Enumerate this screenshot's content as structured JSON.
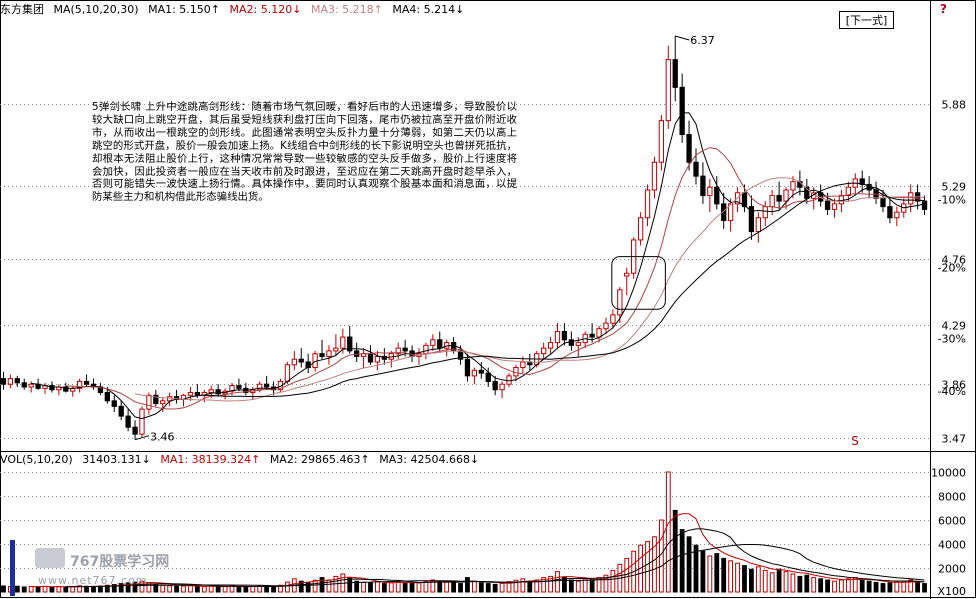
{
  "header": {
    "stock_name": "东方集团",
    "ma_label": "MA(5,10,20,30)",
    "ma1": "MA1: 5.150↑",
    "ma2": "MA2: 5.120↓",
    "ma3": "MA3: 5.218↑",
    "ma4": "MA4: 5.214↓"
  },
  "vol_header": {
    "label": "VOL(5,10,20)",
    "value": "31403.131↓",
    "ma1": "MA1: 38139.324↑",
    "ma2": "MA2: 29865.463↑",
    "ma3": "MA3: 42504.668↓"
  },
  "next_button": "[下一式]",
  "help_icon": "?",
  "annotation": "5弹剑长啸 上升中途跳高剑形线：随着市场气氛回暖，看好后市的人迅速增多，导致股价以较大缺口向上跳空开盘，其后虽受短线获利盘打压向下回落，尾市仍被拉高至开盘价附近收市，从而收出一根跳空的剑形线。此图通常表明空头反扑力量十分薄弱，如第二天仍以高上跳空的形式开盘，股价一般会加速上扬。K线组合中剑形线的长下影说明空头也曾拼死抵抗，却根本无法阻止股价上行，这种情况常常导致一些较敏感的空头反手做多，股价上行速度将会加快，因此投资者一般应在当天收市前及时跟进，至迟应在第二天跳高开盘时趁早杀入，否则可能错失一波快速上扬行情。具体操作中，要同时认真观察个股基本面和消息面，以提防某些主力和机构借此形态骗线出货。",
  "watermark": {
    "title": "767股票学习网",
    "url": "www.net767.com"
  },
  "colors": {
    "up": "#c00000",
    "down": "#000000",
    "ma1": "#000000",
    "ma2": "#b04040",
    "ma3": "#c08080",
    "ma4": "#000000"
  },
  "chart_data": [
    {
      "type": "candlestick",
      "y_ticks": [
        3.47,
        3.86,
        4.29,
        4.76,
        5.29,
        5.88
      ],
      "y_tick_labels": [
        "3.47",
        "3.86",
        "4.29",
        "4.76",
        "5.29",
        "5.88"
      ],
      "pct_tick_labels": [
        "-40%",
        "-30%",
        "-20%",
        "-10%"
      ],
      "pct_tick_values": [
        3.81,
        4.19,
        4.7,
        5.19
      ],
      "ylim": [
        3.4,
        6.5
      ],
      "annotations": {
        "high": 6.37,
        "high_label": "6.37",
        "low": 3.46,
        "low_label": "3.46",
        "marker": "S"
      },
      "ohlc": [
        [
          3.9,
          3.95,
          3.82,
          3.86
        ],
        [
          3.86,
          3.93,
          3.83,
          3.9
        ],
        [
          3.9,
          3.92,
          3.84,
          3.87
        ],
        [
          3.87,
          3.9,
          3.82,
          3.84
        ],
        [
          3.84,
          3.88,
          3.8,
          3.86
        ],
        [
          3.86,
          3.9,
          3.82,
          3.83
        ],
        [
          3.83,
          3.87,
          3.79,
          3.85
        ],
        [
          3.85,
          3.88,
          3.8,
          3.82
        ],
        [
          3.82,
          3.86,
          3.78,
          3.84
        ],
        [
          3.84,
          3.87,
          3.8,
          3.81
        ],
        [
          3.81,
          3.85,
          3.77,
          3.83
        ],
        [
          3.83,
          3.9,
          3.8,
          3.88
        ],
        [
          3.88,
          3.93,
          3.84,
          3.86
        ],
        [
          3.86,
          3.9,
          3.82,
          3.84
        ],
        [
          3.84,
          3.87,
          3.78,
          3.8
        ],
        [
          3.8,
          3.84,
          3.72,
          3.74
        ],
        [
          3.74,
          3.78,
          3.66,
          3.7
        ],
        [
          3.7,
          3.74,
          3.6,
          3.63
        ],
        [
          3.63,
          3.68,
          3.52,
          3.55
        ],
        [
          3.55,
          3.6,
          3.46,
          3.5
        ],
        [
          3.5,
          3.7,
          3.48,
          3.68
        ],
        [
          3.68,
          3.8,
          3.64,
          3.78
        ],
        [
          3.78,
          3.82,
          3.7,
          3.72
        ],
        [
          3.72,
          3.76,
          3.66,
          3.74
        ],
        [
          3.74,
          3.8,
          3.7,
          3.77
        ],
        [
          3.77,
          3.82,
          3.72,
          3.75
        ],
        [
          3.75,
          3.79,
          3.7,
          3.78
        ],
        [
          3.78,
          3.84,
          3.74,
          3.8
        ],
        [
          3.8,
          3.86,
          3.76,
          3.78
        ],
        [
          3.78,
          3.82,
          3.73,
          3.8
        ],
        [
          3.8,
          3.85,
          3.76,
          3.82
        ],
        [
          3.82,
          3.86,
          3.77,
          3.79
        ],
        [
          3.79,
          3.83,
          3.75,
          3.81
        ],
        [
          3.81,
          3.87,
          3.78,
          3.85
        ],
        [
          3.85,
          3.9,
          3.81,
          3.83
        ],
        [
          3.83,
          3.87,
          3.78,
          3.8
        ],
        [
          3.8,
          3.84,
          3.75,
          3.82
        ],
        [
          3.82,
          3.88,
          3.8,
          3.86
        ],
        [
          3.86,
          3.92,
          3.82,
          3.84
        ],
        [
          3.84,
          3.88,
          3.78,
          3.82
        ],
        [
          3.82,
          3.9,
          3.8,
          3.88
        ],
        [
          3.88,
          4.02,
          3.86,
          4.0
        ],
        [
          4.0,
          4.1,
          3.96,
          4.04
        ],
        [
          4.04,
          4.12,
          3.98,
          4.02
        ],
        [
          4.02,
          4.08,
          3.94,
          3.98
        ],
        [
          3.98,
          4.1,
          3.95,
          4.08
        ],
        [
          4.08,
          4.18,
          4.04,
          4.06
        ],
        [
          4.06,
          4.14,
          4.0,
          4.1
        ],
        [
          4.1,
          4.22,
          4.06,
          4.12
        ],
        [
          4.12,
          4.26,
          4.08,
          4.2
        ],
        [
          4.2,
          4.28,
          4.08,
          4.1
        ],
        [
          4.1,
          4.16,
          4.02,
          4.06
        ],
        [
          4.06,
          4.12,
          3.98,
          4.08
        ],
        [
          4.08,
          4.14,
          4.0,
          4.02
        ],
        [
          4.02,
          4.1,
          3.96,
          4.06
        ],
        [
          4.06,
          4.12,
          4.0,
          4.04
        ],
        [
          4.04,
          4.1,
          3.98,
          4.08
        ],
        [
          4.08,
          4.16,
          4.04,
          4.12
        ],
        [
          4.12,
          4.18,
          4.06,
          4.1
        ],
        [
          4.1,
          4.14,
          4.02,
          4.06
        ],
        [
          4.06,
          4.12,
          4.0,
          4.08
        ],
        [
          4.08,
          4.16,
          4.04,
          4.14
        ],
        [
          4.14,
          4.22,
          4.1,
          4.18
        ],
        [
          4.18,
          4.24,
          4.1,
          4.12
        ],
        [
          4.12,
          4.18,
          4.06,
          4.16
        ],
        [
          4.16,
          4.2,
          4.08,
          4.1
        ],
        [
          4.1,
          4.14,
          4.0,
          4.04
        ],
        [
          4.04,
          4.08,
          3.88,
          3.92
        ],
        [
          3.92,
          3.98,
          3.86,
          3.96
        ],
        [
          3.96,
          4.02,
          3.9,
          3.94
        ],
        [
          3.94,
          3.98,
          3.84,
          3.88
        ],
        [
          3.88,
          3.92,
          3.78,
          3.82
        ],
        [
          3.82,
          3.88,
          3.76,
          3.86
        ],
        [
          3.86,
          3.94,
          3.84,
          3.92
        ],
        [
          3.92,
          4.0,
          3.88,
          3.98
        ],
        [
          3.98,
          4.06,
          3.94,
          4.02
        ],
        [
          4.02,
          4.08,
          3.96,
          4.0
        ],
        [
          4.0,
          4.1,
          3.98,
          4.08
        ],
        [
          4.08,
          4.16,
          4.04,
          4.12
        ],
        [
          4.12,
          4.2,
          4.08,
          4.16
        ],
        [
          4.16,
          4.3,
          4.12,
          4.24
        ],
        [
          4.24,
          4.3,
          4.14,
          4.18
        ],
        [
          4.18,
          4.24,
          4.1,
          4.14
        ],
        [
          4.14,
          4.2,
          4.06,
          4.16
        ],
        [
          4.16,
          4.24,
          4.12,
          4.22
        ],
        [
          4.22,
          4.3,
          4.16,
          4.2
        ],
        [
          4.2,
          4.28,
          4.16,
          4.26
        ],
        [
          4.26,
          4.34,
          4.22,
          4.3
        ],
        [
          4.3,
          4.4,
          4.26,
          4.36
        ],
        [
          4.36,
          4.56,
          4.3,
          4.54
        ],
        [
          4.64,
          4.7,
          4.5,
          4.66
        ],
        [
          4.66,
          4.92,
          4.62,
          4.9
        ],
        [
          4.9,
          5.1,
          4.86,
          5.06
        ],
        [
          5.06,
          5.3,
          5.0,
          5.26
        ],
        [
          5.26,
          5.5,
          5.2,
          5.46
        ],
        [
          5.46,
          5.8,
          5.4,
          5.76
        ],
        [
          5.76,
          6.3,
          5.7,
          6.2
        ],
        [
          6.2,
          6.37,
          5.9,
          6.0
        ],
        [
          6.0,
          6.1,
          5.6,
          5.66
        ],
        [
          5.66,
          5.76,
          5.4,
          5.46
        ],
        [
          5.46,
          5.56,
          5.3,
          5.36
        ],
        [
          5.36,
          5.46,
          5.16,
          5.22
        ],
        [
          5.22,
          5.34,
          5.1,
          5.28
        ],
        [
          5.28,
          5.36,
          5.12,
          5.16
        ],
        [
          5.16,
          5.24,
          4.98,
          5.04
        ],
        [
          5.04,
          5.2,
          4.96,
          5.16
        ],
        [
          5.16,
          5.28,
          5.1,
          5.24
        ],
        [
          5.24,
          5.3,
          5.1,
          5.14
        ],
        [
          5.14,
          5.22,
          4.9,
          4.96
        ],
        [
          4.96,
          5.1,
          4.88,
          5.06
        ],
        [
          5.06,
          5.18,
          5.0,
          5.14
        ],
        [
          5.14,
          5.26,
          5.08,
          5.22
        ],
        [
          5.22,
          5.32,
          5.12,
          5.18
        ],
        [
          5.18,
          5.28,
          5.12,
          5.26
        ],
        [
          5.26,
          5.36,
          5.2,
          5.32
        ],
        [
          5.32,
          5.4,
          5.22,
          5.28
        ],
        [
          5.28,
          5.34,
          5.16,
          5.2
        ],
        [
          5.2,
          5.28,
          5.12,
          5.24
        ],
        [
          5.24,
          5.3,
          5.14,
          5.18
        ],
        [
          5.18,
          5.24,
          5.08,
          5.12
        ],
        [
          5.12,
          5.2,
          5.06,
          5.16
        ],
        [
          5.16,
          5.26,
          5.1,
          5.22
        ],
        [
          5.22,
          5.32,
          5.18,
          5.28
        ],
        [
          5.28,
          5.38,
          5.22,
          5.34
        ],
        [
          5.34,
          5.4,
          5.24,
          5.3
        ],
        [
          5.3,
          5.36,
          5.2,
          5.26
        ],
        [
          5.26,
          5.32,
          5.16,
          5.2
        ],
        [
          5.2,
          5.26,
          5.1,
          5.14
        ],
        [
          5.14,
          5.2,
          5.02,
          5.06
        ],
        [
          5.06,
          5.14,
          5.0,
          5.1
        ],
        [
          5.1,
          5.2,
          5.06,
          5.16
        ],
        [
          5.16,
          5.3,
          5.1,
          5.24
        ],
        [
          5.24,
          5.3,
          5.12,
          5.18
        ],
        [
          5.18,
          5.22,
          5.08,
          5.12
        ]
      ]
    },
    {
      "type": "bar",
      "y_ticks": [
        2000,
        4000,
        6000,
        8000,
        10000
      ],
      "y_tick_labels": [
        "2000",
        "4000",
        "6000",
        "8000",
        "10000"
      ],
      "unit_label": "X100",
      "ylim": [
        0,
        10500
      ],
      "values": [
        500,
        450,
        480,
        420,
        460,
        440,
        470,
        430,
        450,
        420,
        440,
        520,
        480,
        460,
        500,
        560,
        620,
        700,
        760,
        820,
        900,
        780,
        640,
        560,
        520,
        480,
        500,
        540,
        460,
        440,
        480,
        420,
        460,
        500,
        440,
        420,
        460,
        520,
        480,
        440,
        560,
        820,
        1100,
        900,
        760,
        980,
        1200,
        1000,
        1300,
        1500,
        1200,
        900,
        800,
        760,
        840,
        700,
        760,
        880,
        800,
        720,
        760,
        880,
        1000,
        900,
        820,
        780,
        700,
        1200,
        900,
        760,
        700,
        640,
        720,
        860,
        980,
        1100,
        900,
        1000,
        1200,
        1300,
        1700,
        1200,
        1000,
        900,
        1100,
        1000,
        1200,
        1400,
        1800,
        2300,
        2800,
        3400,
        3900,
        4200,
        4600,
        6000,
        10000,
        6800,
        5200,
        4600,
        3900,
        3400,
        3000,
        3200,
        2800,
        2600,
        2400,
        2200,
        1900,
        2100,
        1800,
        1600,
        1900,
        1700,
        1500,
        1300,
        1400,
        1200,
        1100,
        1000,
        900,
        1000,
        1100,
        1200,
        1000,
        900,
        800,
        700,
        760,
        820,
        900,
        1000,
        800,
        700
      ]
    }
  ]
}
